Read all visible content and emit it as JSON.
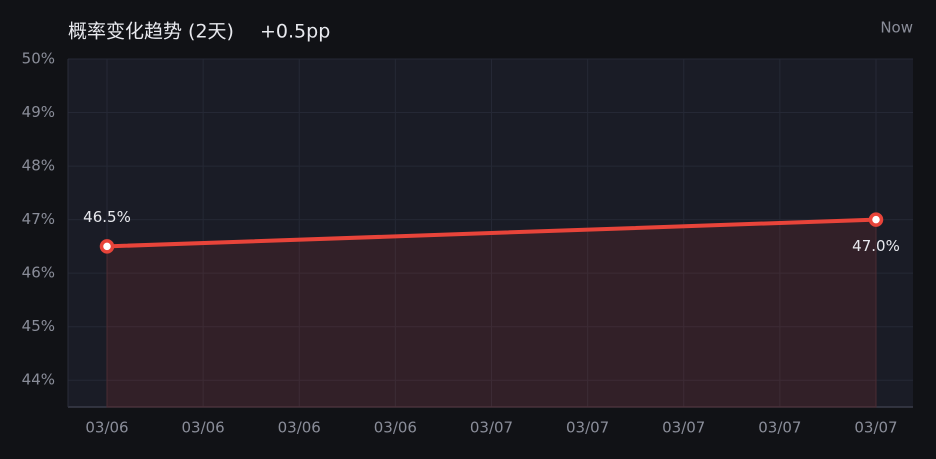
{
  "chart_data": {
    "type": "line",
    "title": "概率变化趋势 (2天)",
    "change": "+0.5pp",
    "corner_label": "Now",
    "x": [
      "03/06",
      "03/07"
    ],
    "xticks": [
      "03/06",
      "03/06",
      "03/06",
      "03/06",
      "03/07",
      "03/07",
      "03/07",
      "03/07",
      "03/07"
    ],
    "series": [
      {
        "name": "概率",
        "color": "#e8443a",
        "values": [
          46.5,
          47.0
        ],
        "value_labels": [
          "46.5%",
          "47.0%"
        ]
      }
    ],
    "ylim": [
      43.5,
      50
    ],
    "yticks": [
      {
        "value": 44,
        "label": "44%"
      },
      {
        "value": 45,
        "label": "45%"
      },
      {
        "value": 46,
        "label": "46%"
      },
      {
        "value": 47,
        "label": "47%"
      },
      {
        "value": 48,
        "label": "48%"
      },
      {
        "value": 49,
        "label": "49%"
      },
      {
        "value": 50,
        "label": "50%"
      }
    ],
    "grid": true
  }
}
